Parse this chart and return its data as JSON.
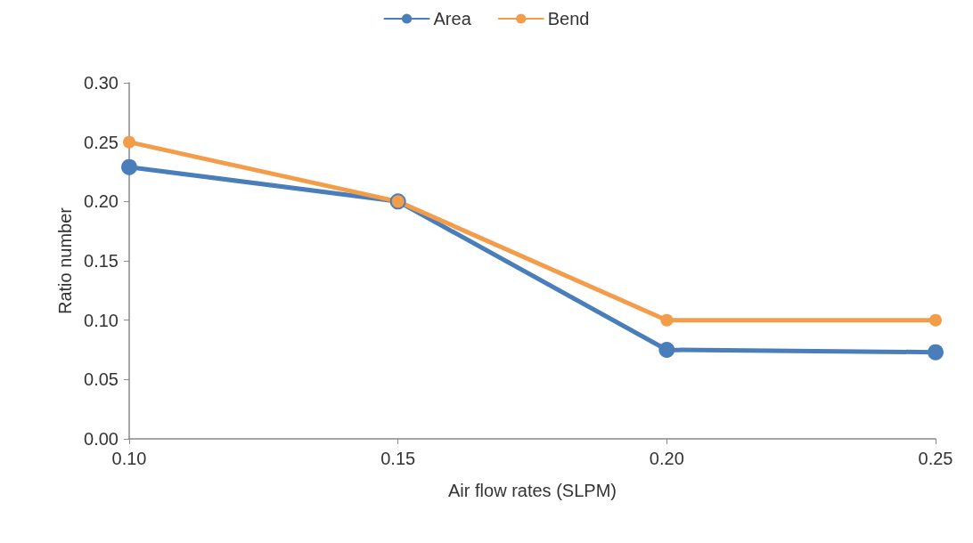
{
  "chart_data": {
    "type": "line",
    "xlabel": "Air flow rates (SLPM)",
    "ylabel": "Ratio number",
    "x": [
      0.1,
      0.15,
      0.2,
      0.25
    ],
    "series": [
      {
        "name": "Area",
        "color": "#4a7ebb",
        "values": [
          0.229,
          0.2,
          0.075,
          0.073
        ]
      },
      {
        "name": "Bend",
        "color": "#f39c4a",
        "values": [
          0.25,
          0.2,
          0.1,
          0.1
        ]
      }
    ],
    "xlim": [
      0.1,
      0.25
    ],
    "xticks": [
      {
        "value": 0.1,
        "label": "0.10"
      },
      {
        "value": 0.15,
        "label": "0.15"
      },
      {
        "value": 0.2,
        "label": "0.20"
      },
      {
        "value": 0.25,
        "label": "0.25"
      }
    ],
    "ylim": [
      0,
      0.3
    ],
    "yticks": [
      {
        "value": 0,
        "label": "0.00"
      },
      {
        "value": 0.05,
        "label": "0.05"
      },
      {
        "value": 0.1,
        "label": "0.10"
      },
      {
        "value": 0.15,
        "label": "0.15"
      },
      {
        "value": 0.2,
        "label": "0.20"
      },
      {
        "value": 0.25,
        "label": "0.25"
      },
      {
        "value": 0.3,
        "label": "0.30"
      }
    ],
    "grid": false,
    "legend": "top",
    "marker": "circle",
    "line_style": "solid"
  }
}
